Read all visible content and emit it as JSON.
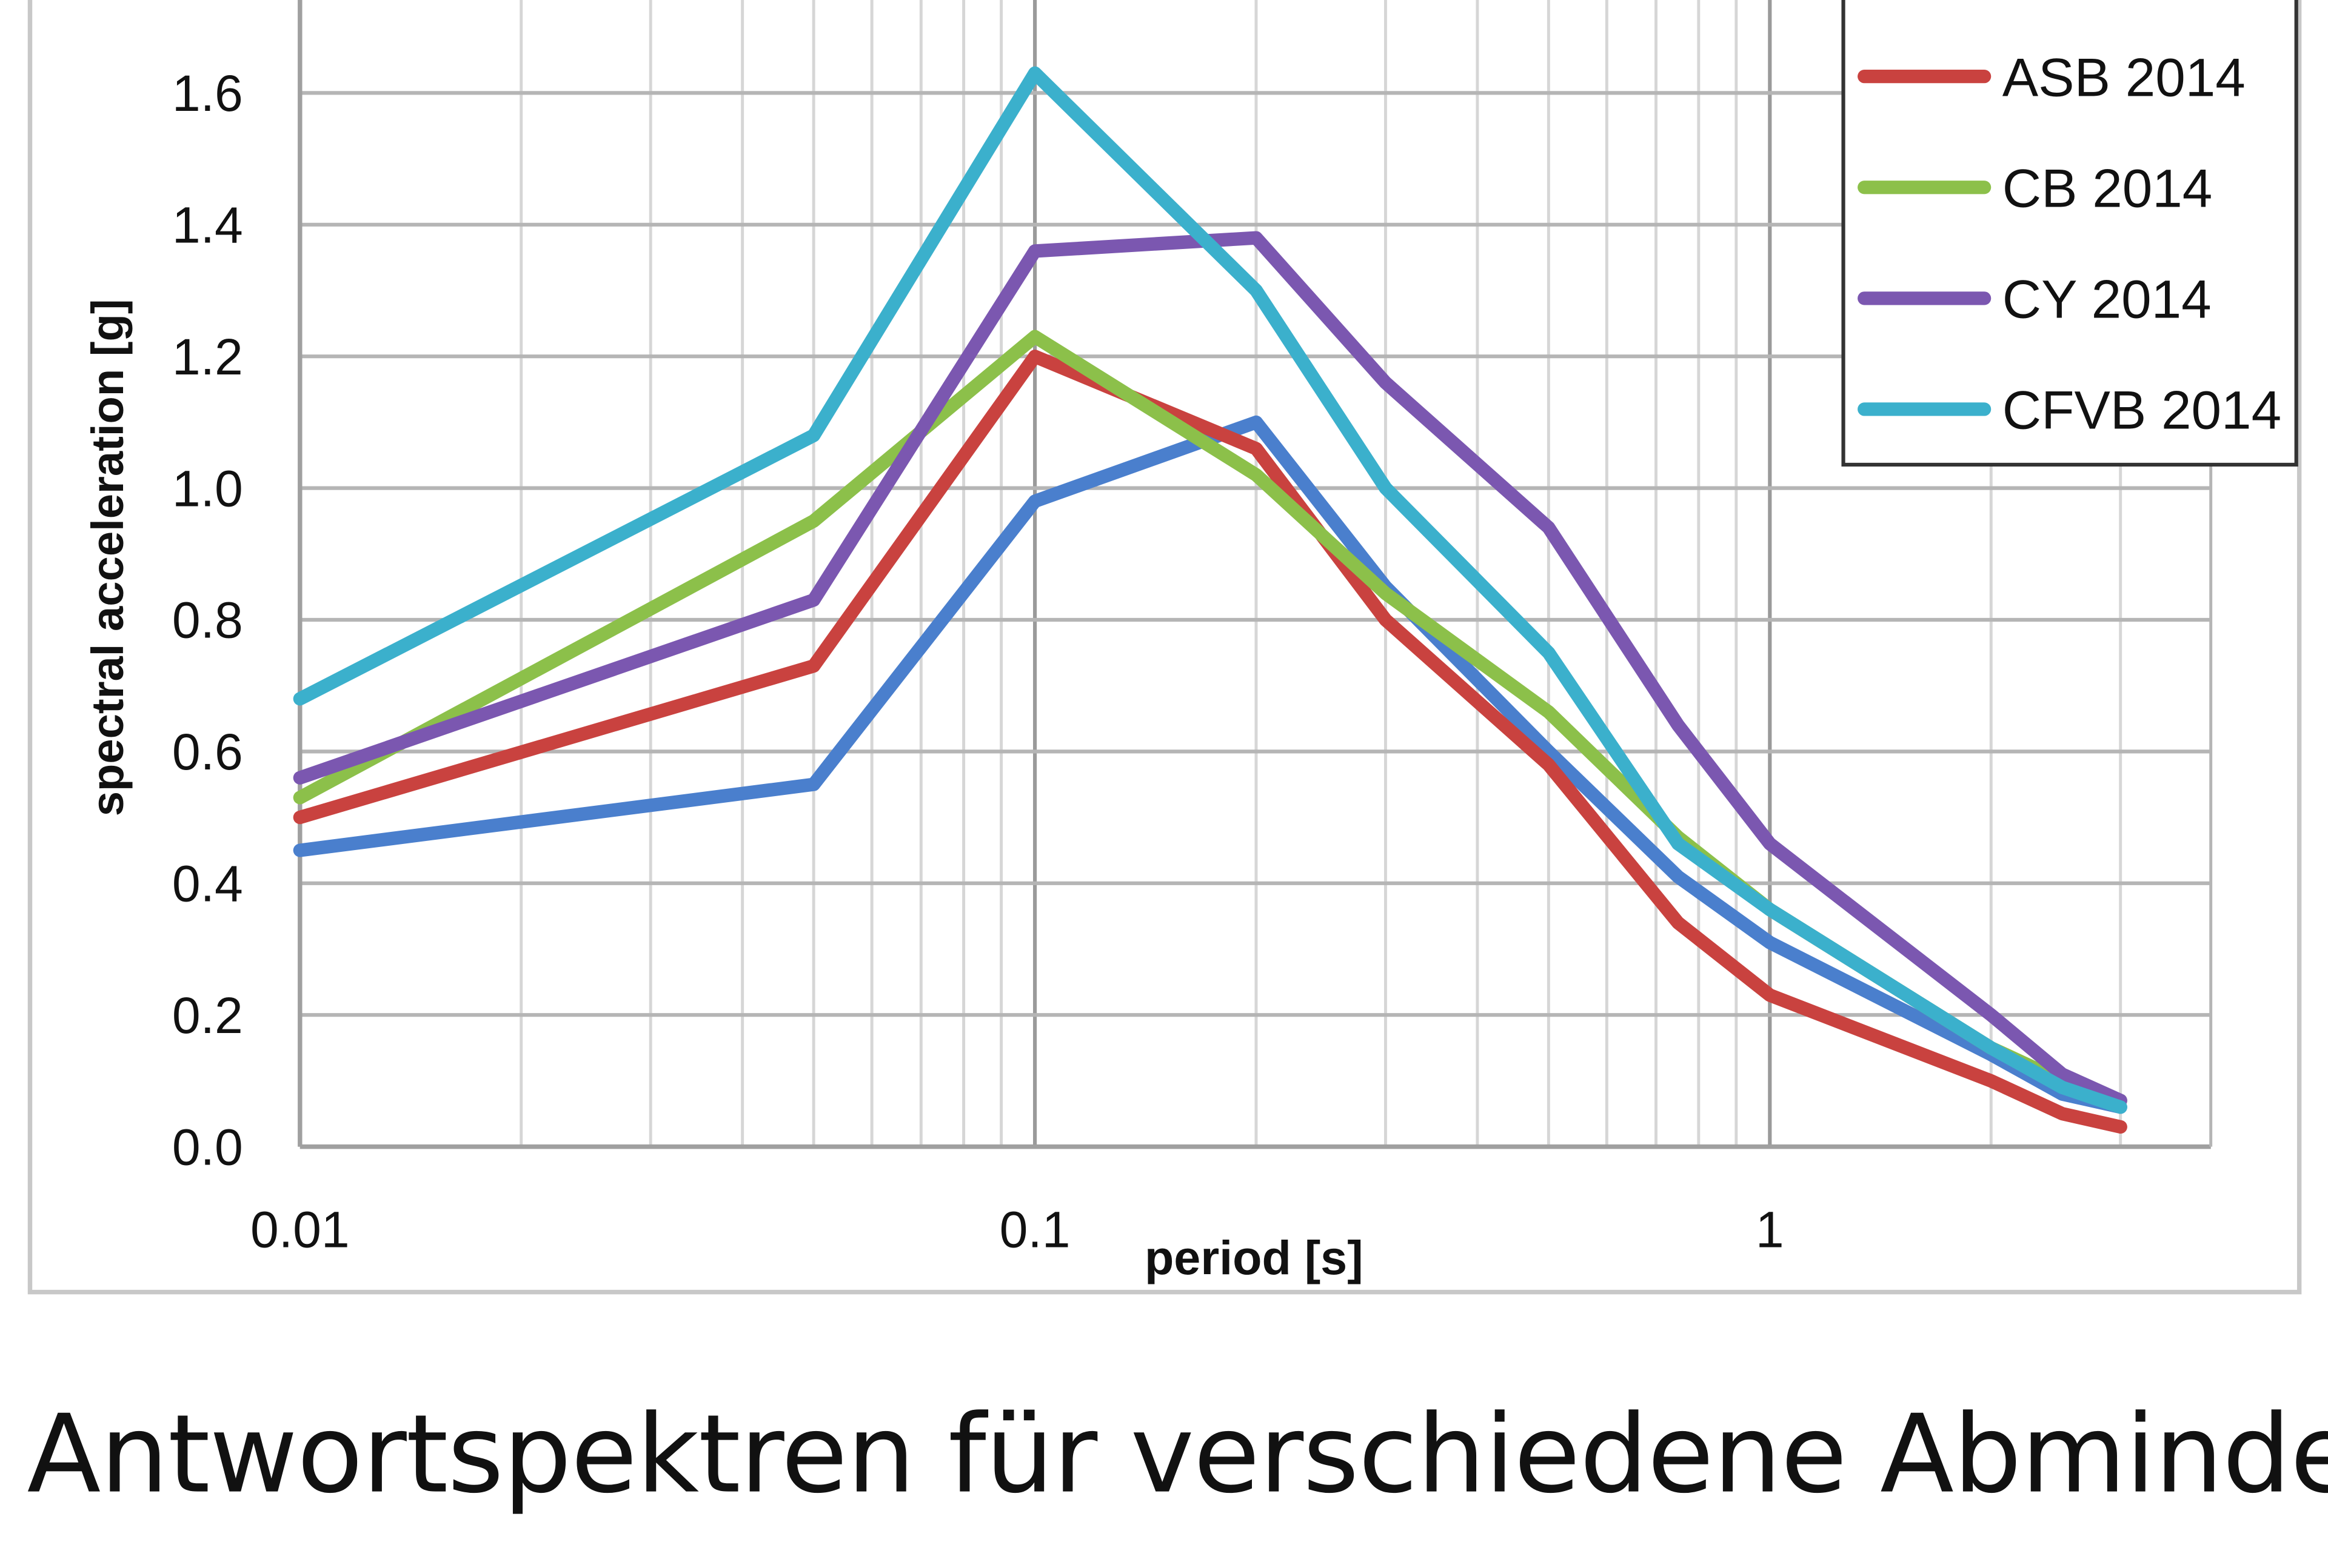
{
  "chart_data": {
    "type": "line",
    "title": "",
    "xlabel": "period [s]",
    "ylabel": "spectral acceleration [g]",
    "x_scale": "log",
    "xlim": [
      0.01,
      3
    ],
    "ylim": [
      0,
      1.7
    ],
    "x_ticks": [
      {
        "value": 0.01,
        "label": "0.01"
      },
      {
        "value": 0.1,
        "label": "0.1"
      },
      {
        "value": 1,
        "label": "1"
      }
    ],
    "y_ticks": [
      {
        "value": 0,
        "label": "0.0"
      },
      {
        "value": 0.2,
        "label": "0.2"
      },
      {
        "value": 0.4,
        "label": "0.4"
      },
      {
        "value": 0.6,
        "label": "0.6"
      },
      {
        "value": 0.8,
        "label": "0.8"
      },
      {
        "value": 1.0,
        "label": "1.0"
      },
      {
        "value": 1.2,
        "label": "1.2"
      },
      {
        "value": 1.4,
        "label": "1.4"
      },
      {
        "value": 1.6,
        "label": "1.6"
      }
    ],
    "grid": true,
    "legend_position": "top-right",
    "x": [
      0.01,
      0.05,
      0.1,
      0.2,
      0.3,
      0.5,
      0.75,
      1,
      2,
      2.5,
      3
    ],
    "series": [
      {
        "name": "",
        "color": "#4a7fcd",
        "values": [
          0.45,
          0.55,
          0.98,
          1.1,
          0.85,
          0.6,
          0.41,
          0.31,
          0.14,
          0.08,
          0.06
        ]
      },
      {
        "name": "ASB 2014",
        "color": "#c9423f",
        "values": [
          0.5,
          0.73,
          1.2,
          1.06,
          0.8,
          0.58,
          0.34,
          0.23,
          0.1,
          0.05,
          0.03
        ]
      },
      {
        "name": "CB 2014",
        "color": "#8cc04a",
        "values": [
          0.53,
          0.95,
          1.23,
          1.02,
          0.84,
          0.66,
          0.47,
          0.36,
          0.15,
          0.1,
          0.07
        ]
      },
      {
        "name": "CY 2014",
        "color": "#7b57b0",
        "values": [
          0.56,
          0.83,
          1.36,
          1.38,
          1.16,
          0.94,
          0.64,
          0.46,
          0.2,
          0.11,
          0.07
        ]
      },
      {
        "name": "CFVB 2014",
        "color": "#3bb0cc",
        "values": [
          0.68,
          1.08,
          1.63,
          1.3,
          1.0,
          0.75,
          0.46,
          0.36,
          0.15,
          0.09,
          0.06
        ]
      }
    ]
  },
  "caption": "Antwortspektren für verschiedene Abminde-"
}
